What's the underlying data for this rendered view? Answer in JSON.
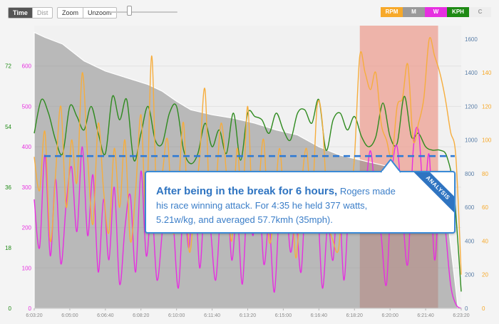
{
  "toolbar": {
    "time_label": "Time",
    "dist_label": "Dist",
    "zoom_label": "Zoom",
    "unzoom_label": "Unzoom"
  },
  "legend": [
    {
      "label": "RPM",
      "bg": "#f7a92a",
      "fg": "#ffffff"
    },
    {
      "label": "M",
      "bg": "#9a9a9a",
      "fg": "#ffffff"
    },
    {
      "label": "W",
      "bg": "#e62fe0",
      "fg": "#ffffff"
    },
    {
      "label": "KPH",
      "bg": "#1e8a14",
      "fg": "#ffffff"
    },
    {
      "label": "C",
      "bg": "#eeeeee",
      "fg": "#9a9a9a"
    }
  ],
  "callout": {
    "headline": "After being in the break for 6 hours,",
    "body": "Rogers made his race winning attack. For 4:35 he held 377 watts, 5.21w/kg, and averaged 57.7kmh (35mph).",
    "banner": "ANALYSIS"
  },
  "chart_data": {
    "type": "line",
    "x_labels": [
      "6:03:20",
      "6:05:00",
      "6:06:40",
      "6:08:20",
      "6:10:00",
      "6:11:40",
      "6:13:20",
      "6:15:00",
      "6:16:40",
      "6:18:20",
      "6:20:00",
      "6:21:40",
      "6:23:20"
    ],
    "x_range": [
      0,
      1200
    ],
    "axes": {
      "kph": {
        "ticks": [
          "0",
          "18",
          "36",
          "54",
          "72"
        ],
        "range": [
          0,
          84
        ],
        "color": "#1e8a14"
      },
      "watts": {
        "ticks": [
          "0",
          "100",
          "200",
          "300",
          "400",
          "500",
          "600"
        ],
        "range": [
          0,
          700
        ],
        "color": "#e62fe0"
      },
      "elevation": {
        "ticks": [
          "0",
          "200",
          "400",
          "600",
          "800",
          "1000",
          "1200",
          "1400",
          "1600"
        ],
        "range": [
          0,
          1680
        ],
        "color": "#5b7fa8"
      },
      "rpm": {
        "ticks": [
          "0",
          "20",
          "40",
          "60",
          "80",
          "100",
          "120",
          "140"
        ],
        "range": [
          0,
          168
        ],
        "color": "#f7a92a"
      }
    },
    "highlight": {
      "x_start": 915,
      "x_end": 1135,
      "color": "#ec9f92"
    },
    "reference_line": {
      "axis": "watts",
      "value": 377,
      "color": "#2f7ad4"
    },
    "series": [
      {
        "key": "elevation",
        "axis": "elevation",
        "color": "#8a8a8a",
        "x": [
          0,
          30,
          80,
          140,
          200,
          260,
          320,
          360,
          400,
          440,
          500,
          560,
          620,
          680,
          740,
          800,
          860,
          900,
          940,
          980,
          1000,
          1040,
          1080,
          1120,
          1160,
          1190
        ],
        "y": [
          1640,
          1610,
          1570,
          1470,
          1410,
          1370,
          1330,
          1290,
          1230,
          1180,
          1150,
          1130,
          1100,
          1060,
          1030,
          960,
          910,
          890,
          870,
          850,
          840,
          780,
          730,
          680,
          560,
          20
        ]
      },
      {
        "key": "kph",
        "axis": "kph",
        "color": "#2e8a1e",
        "x": [
          0,
          20,
          40,
          60,
          80,
          100,
          120,
          140,
          160,
          180,
          200,
          220,
          240,
          260,
          280,
          300,
          320,
          340,
          360,
          380,
          400,
          420,
          440,
          460,
          480,
          500,
          520,
          540,
          560,
          580,
          600,
          620,
          640,
          660,
          680,
          700,
          720,
          740,
          760,
          780,
          800,
          820,
          840,
          860,
          880,
          900,
          920,
          940,
          960,
          980,
          1000,
          1020,
          1040,
          1060,
          1080,
          1100,
          1120,
          1140,
          1160,
          1180,
          1200
        ],
        "y": [
          52,
          62,
          58,
          50,
          46,
          60,
          57,
          53,
          60,
          52,
          46,
          63,
          56,
          62,
          44,
          52,
          60,
          50,
          49,
          58,
          60,
          47,
          43,
          46,
          55,
          48,
          53,
          46,
          58,
          44,
          58,
          57,
          56,
          52,
          58,
          53,
          50,
          58,
          59,
          55,
          62,
          47,
          56,
          58,
          53,
          57,
          51,
          48,
          51,
          61,
          51,
          49,
          63,
          51,
          52,
          48,
          47,
          47,
          45,
          34,
          5
        ]
      },
      {
        "key": "watts",
        "axis": "watts",
        "color": "#e62fe0",
        "x": [
          0,
          15,
          30,
          45,
          60,
          75,
          90,
          105,
          120,
          135,
          150,
          165,
          180,
          195,
          210,
          225,
          240,
          255,
          270,
          285,
          300,
          315,
          330,
          345,
          360,
          375,
          390,
          405,
          420,
          435,
          450,
          465,
          480,
          495,
          510,
          525,
          540,
          555,
          570,
          585,
          600,
          615,
          630,
          645,
          660,
          675,
          690,
          705,
          720,
          735,
          750,
          765,
          780,
          795,
          810,
          825,
          840,
          855,
          870,
          885,
          900,
          915,
          930,
          945,
          960,
          975,
          990,
          1005,
          1020,
          1035,
          1050,
          1065,
          1080,
          1095,
          1110,
          1125,
          1140,
          1155,
          1170,
          1185,
          1200
        ],
        "y": [
          270,
          150,
          380,
          130,
          320,
          110,
          260,
          350,
          190,
          400,
          180,
          330,
          90,
          270,
          120,
          300,
          60,
          200,
          280,
          90,
          340,
          130,
          250,
          70,
          190,
          310,
          220,
          50,
          260,
          150,
          330,
          100,
          280,
          200,
          70,
          260,
          330,
          120,
          240,
          60,
          290,
          180,
          330,
          110,
          210,
          40,
          260,
          300,
          140,
          220,
          90,
          320,
          190,
          270,
          50,
          210,
          120,
          310,
          70,
          260,
          210,
          330,
          300,
          390,
          270,
          180,
          60,
          330,
          400,
          240,
          110,
          390,
          440,
          270,
          380,
          120,
          300,
          200,
          60,
          10,
          0
        ]
      },
      {
        "key": "rpm",
        "axis": "rpm",
        "color": "#f6ad3d",
        "x": [
          0,
          15,
          30,
          45,
          60,
          75,
          90,
          105,
          120,
          135,
          150,
          165,
          180,
          195,
          210,
          225,
          240,
          255,
          270,
          285,
          300,
          315,
          330,
          345,
          360,
          375,
          390,
          405,
          420,
          435,
          450,
          465,
          480,
          495,
          510,
          525,
          540,
          555,
          570,
          585,
          600,
          615,
          630,
          645,
          660,
          675,
          690,
          705,
          720,
          735,
          750,
          765,
          780,
          795,
          810,
          825,
          840,
          855,
          870,
          885,
          900,
          915,
          930,
          945,
          960,
          975,
          990,
          1005,
          1020,
          1035,
          1050,
          1065,
          1080,
          1095,
          1110,
          1125,
          1140,
          1155,
          1170,
          1185,
          1200
        ],
        "y": [
          90,
          70,
          105,
          40,
          80,
          120,
          60,
          100,
          75,
          140,
          90,
          50,
          110,
          70,
          45,
          95,
          60,
          100,
          40,
          70,
          115,
          55,
          150,
          60,
          80,
          100,
          45,
          70,
          110,
          35,
          60,
          90,
          130,
          50,
          70,
          110,
          80,
          40,
          95,
          60,
          120,
          50,
          70,
          100,
          40,
          60,
          95,
          55,
          80,
          30,
          70,
          95,
          60,
          120,
          110,
          55,
          40,
          35,
          70,
          60,
          90,
          150,
          140,
          130,
          140,
          110,
          100,
          90,
          120,
          125,
          145,
          100,
          110,
          125,
          160,
          150,
          140,
          125,
          105,
          90,
          20
        ]
      }
    ]
  }
}
